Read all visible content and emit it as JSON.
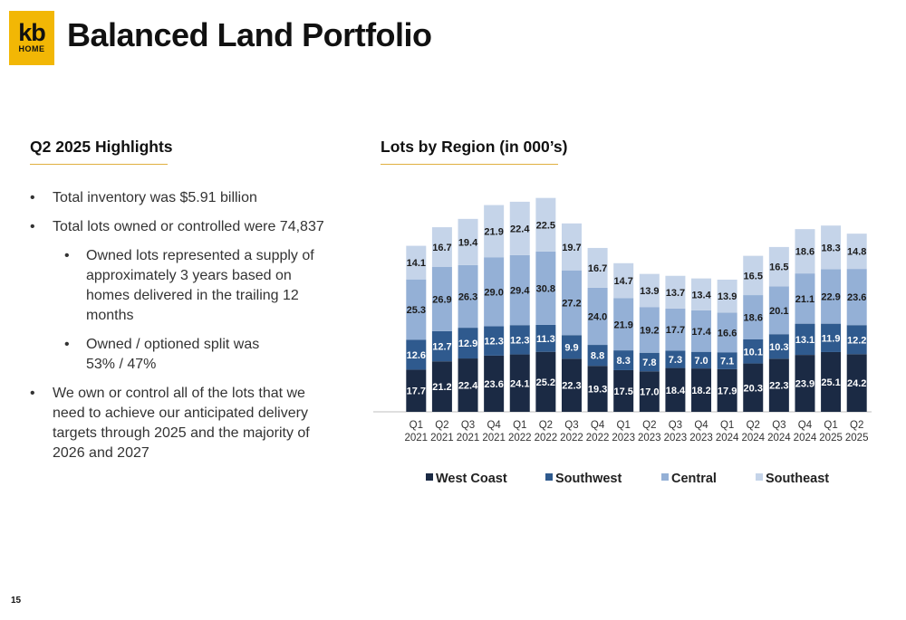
{
  "logo": {
    "line1": "kb",
    "line2": "HOME"
  },
  "title": "Balanced Land Portfolio",
  "highlights": {
    "heading": "Q2 2025 Highlights",
    "bullets": [
      {
        "level": 1,
        "text": "Total inventory was $5.91 billion"
      },
      {
        "level": 1,
        "text": "Total lots owned or controlled were 74,837"
      },
      {
        "level": 2,
        "text": "Owned lots represented a supply of approximately 3 years based on homes delivered in the trailing 12 months"
      },
      {
        "level": 2,
        "text": "Owned / optioned split was",
        "text2": "53% / 47%"
      },
      {
        "level": 1,
        "text": "We own or control all of the lots that we need to achieve our anticipated delivery targets through 2025 and the majority of 2026 and 2027"
      }
    ]
  },
  "chart_heading": "Lots by Region (in 000’s)",
  "page_number": "15",
  "colors": {
    "accent_rule": "#e0b040",
    "logo_bg": "#f2b705",
    "west_coast": "#1b2a44",
    "southwest": "#2f5a8e",
    "central": "#94b0d6",
    "southeast": "#c5d4e9"
  },
  "chart_data": {
    "type": "bar",
    "stacked": true,
    "categories": [
      [
        "Q1",
        "2021"
      ],
      [
        "Q2",
        "2021"
      ],
      [
        "Q3",
        "2021"
      ],
      [
        "Q4",
        "2021"
      ],
      [
        "Q1",
        "2022"
      ],
      [
        "Q2",
        "2022"
      ],
      [
        "Q3",
        "2022"
      ],
      [
        "Q4",
        "2022"
      ],
      [
        "Q1",
        "2023"
      ],
      [
        "Q2",
        "2023"
      ],
      [
        "Q3",
        "2023"
      ],
      [
        "Q4",
        "2023"
      ],
      [
        "Q1",
        "2024"
      ],
      [
        "Q2",
        "2024"
      ],
      [
        "Q3",
        "2024"
      ],
      [
        "Q4",
        "2024"
      ],
      [
        "Q1",
        "2025"
      ],
      [
        "Q2",
        "2025"
      ]
    ],
    "series": [
      {
        "name": "West Coast",
        "color": "#1b2a44",
        "label_color": "#ffffff",
        "values": [
          17.7,
          21.2,
          22.4,
          23.6,
          24.1,
          25.2,
          22.3,
          19.3,
          17.5,
          17.0,
          18.4,
          18.2,
          17.9,
          20.3,
          22.3,
          23.9,
          25.1,
          24.2
        ]
      },
      {
        "name": "Southwest",
        "color": "#2f5a8e",
        "label_color": "#ffffff",
        "values": [
          12.6,
          12.7,
          12.9,
          12.3,
          12.3,
          11.3,
          9.9,
          8.8,
          8.3,
          7.8,
          7.3,
          7.0,
          7.1,
          10.1,
          10.3,
          13.1,
          11.9,
          12.2
        ]
      },
      {
        "name": "Central",
        "color": "#94b0d6",
        "label_color": "#1b1b1b",
        "values": [
          25.3,
          26.9,
          26.3,
          29.0,
          29.4,
          30.8,
          27.2,
          24.0,
          21.9,
          19.2,
          17.7,
          17.4,
          16.6,
          18.6,
          20.1,
          21.1,
          22.9,
          23.6
        ]
      },
      {
        "name": "Southeast",
        "color": "#c5d4e9",
        "label_color": "#1b1b1b",
        "values": [
          14.1,
          16.7,
          19.4,
          21.9,
          22.4,
          22.5,
          19.7,
          16.7,
          14.7,
          13.9,
          13.7,
          13.4,
          13.9,
          16.5,
          16.5,
          18.6,
          18.3,
          14.8
        ]
      }
    ],
    "ylim": [
      0,
      95
    ],
    "grid": false,
    "legend_position": "bottom"
  }
}
